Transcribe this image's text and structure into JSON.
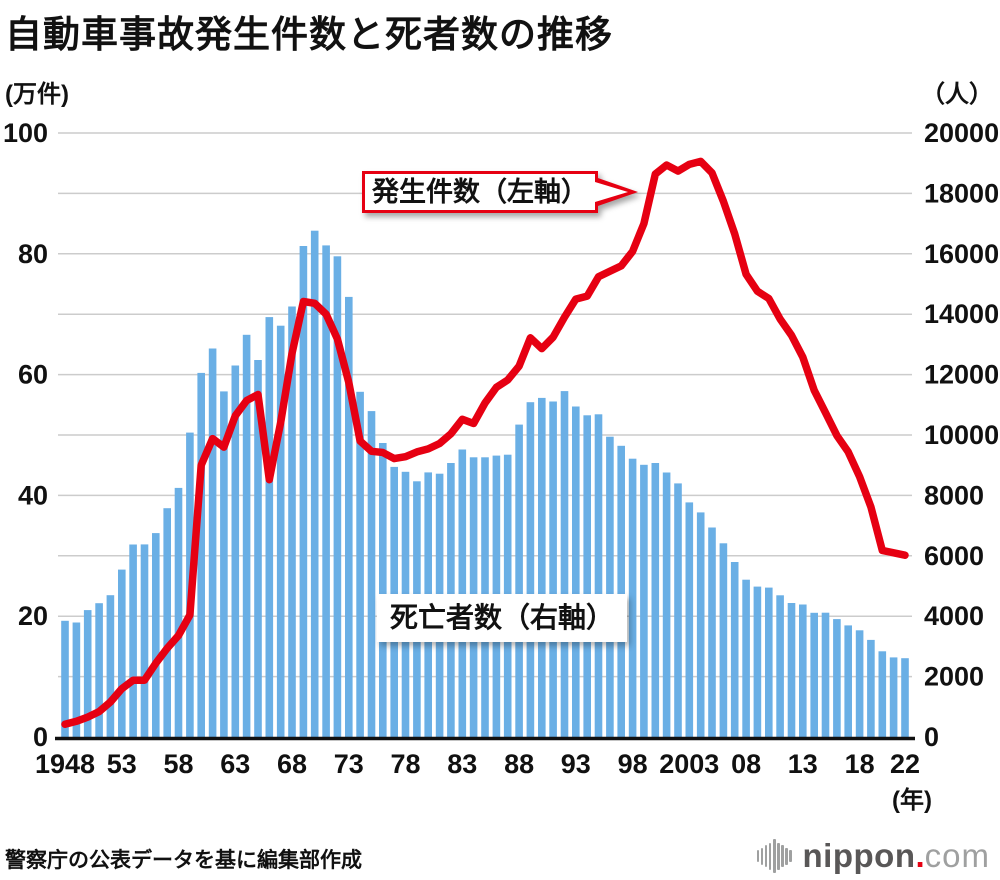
{
  "title": "自動車事故発生件数と死者数の推移",
  "callouts": {
    "line_label": "発生件数（左軸）",
    "bar_label": "死亡者数（右軸）"
  },
  "source": "警察庁の公表データを基に編集部作成",
  "logo": {
    "name": "nippon",
    "dot": ".",
    "tld": "com"
  },
  "colors": {
    "bar": "#6aafe5",
    "line": "#e60012",
    "grid": "#cccccc",
    "axis": "#111111",
    "text": "#111111",
    "logo_dark": "#595757",
    "logo_light": "#9fa0a0",
    "logo_dot": "#e60012"
  },
  "chart_data": {
    "type": "bar+line",
    "title": "自動車事故発生件数と死者数の推移",
    "grid": true,
    "left_axis": {
      "unit": "(万件)",
      "ticks": [
        0,
        20,
        40,
        60,
        80,
        100
      ],
      "ylim": [
        0,
        100
      ]
    },
    "right_axis": {
      "unit": "（人）",
      "ticks": [
        0,
        2000,
        4000,
        6000,
        8000,
        10000,
        12000,
        14000,
        16000,
        18000,
        20000
      ],
      "ylim": [
        0,
        20000
      ]
    },
    "x_axis": {
      "unit": "(年)",
      "tick_labels": [
        "1948",
        "53",
        "58",
        "63",
        "68",
        "73",
        "78",
        "83",
        "88",
        "93",
        "98",
        "2003",
        "08",
        "13",
        "18",
        "22"
      ],
      "tick_years": [
        1948,
        1953,
        1958,
        1963,
        1968,
        1973,
        1978,
        1983,
        1988,
        1993,
        1998,
        2003,
        2008,
        2013,
        2018,
        2022
      ]
    },
    "years": [
      1948,
      1949,
      1950,
      1951,
      1952,
      1953,
      1954,
      1955,
      1956,
      1957,
      1958,
      1959,
      1960,
      1961,
      1962,
      1963,
      1964,
      1965,
      1966,
      1967,
      1968,
      1969,
      1970,
      1971,
      1972,
      1973,
      1974,
      1975,
      1976,
      1977,
      1978,
      1979,
      1980,
      1981,
      1982,
      1983,
      1984,
      1985,
      1986,
      1987,
      1988,
      1989,
      1990,
      1991,
      1992,
      1993,
      1994,
      1995,
      1996,
      1997,
      1998,
      1999,
      2000,
      2001,
      2002,
      2003,
      2004,
      2005,
      2006,
      2007,
      2008,
      2009,
      2010,
      2011,
      2012,
      2013,
      2014,
      2015,
      2016,
      2017,
      2018,
      2019,
      2020,
      2021,
      2022
    ],
    "series": [
      {
        "name": "発生件数（左軸）",
        "type": "line",
        "axis": "left",
        "unit": "万件",
        "color": "#e60012",
        "values": [
          2.1,
          2.6,
          3.3,
          4.2,
          5.8,
          8.0,
          9.4,
          9.4,
          12.2,
          14.7,
          16.8,
          20.2,
          45.0,
          49.4,
          48.0,
          53.2,
          55.7,
          56.7,
          42.6,
          52.1,
          63.5,
          72.1,
          71.8,
          70.0,
          65.9,
          58.7,
          49.0,
          47.3,
          47.1,
          46.1,
          46.4,
          47.2,
          47.7,
          48.6,
          50.2,
          52.6,
          51.9,
          55.3,
          57.9,
          59.1,
          61.4,
          66.1,
          64.3,
          66.2,
          69.5,
          72.5,
          73.0,
          76.2,
          77.1,
          78.0,
          80.4,
          85.0,
          93.2,
          94.7,
          93.7,
          94.8,
          95.3,
          93.4,
          88.7,
          83.3,
          76.6,
          73.8,
          72.6,
          69.2,
          66.5,
          62.9,
          57.4,
          53.7,
          49.9,
          47.2,
          43.1,
          38.1,
          30.9,
          30.5,
          30.1
        ]
      },
      {
        "name": "死亡者数（右軸）",
        "type": "bar",
        "axis": "right",
        "unit": "人",
        "color": "#6aafe5",
        "values": [
          3848,
          3790,
          4202,
          4429,
          4696,
          5544,
          6374,
          6379,
          6751,
          7575,
          8248,
          10079,
          12055,
          12865,
          11445,
          12301,
          13318,
          12484,
          13904,
          13618,
          14256,
          16257,
          16765,
          16278,
          15918,
          14574,
          11432,
          10792,
          9734,
          8945,
          8783,
          8466,
          8760,
          8719,
          9073,
          9520,
          9262,
          9261,
          9317,
          9347,
          10344,
          11086,
          11227,
          11109,
          11452,
          10945,
          10653,
          10684,
          9943,
          9642,
          9214,
          9012,
          9073,
          8757,
          8396,
          7768,
          7436,
          6937,
          6415,
          5796,
          5209,
          4979,
          4948,
          4691,
          4438,
          4388,
          4113,
          4117,
          3904,
          3694,
          3532,
          3215,
          2839,
          2636,
          2610
        ]
      }
    ]
  }
}
